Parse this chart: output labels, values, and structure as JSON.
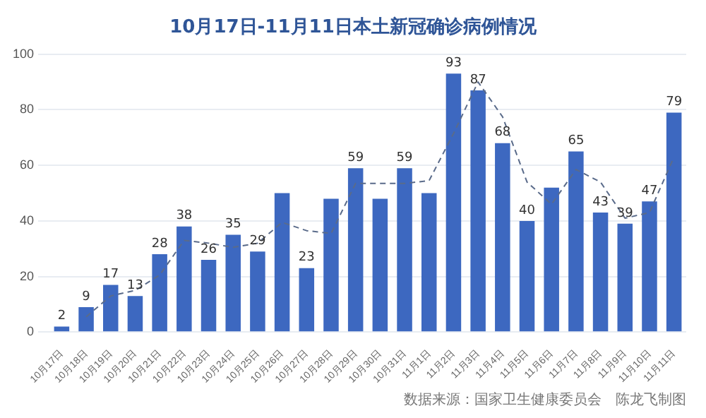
{
  "chart_data": {
    "type": "bar",
    "title": "10月17日-11月11日本土新冠确诊病例情况",
    "categories": [
      "10月17日",
      "10月18日",
      "10月19日",
      "10月20日",
      "10月21日",
      "10月22日",
      "10月23日",
      "10月24日",
      "10月25日",
      "10月26日",
      "10月27日",
      "10月28日",
      "10月29日",
      "10月30日",
      "10月31日",
      "11月1日",
      "11月2日",
      "11月3日",
      "11月4日",
      "11月5日",
      "11月6日",
      "11月7日",
      "11月8日",
      "11月9日",
      "11月10日",
      "11月11日"
    ],
    "series": [
      {
        "color": "#3d68c0",
        "values": [
          2,
          9,
          17,
          13,
          28,
          38,
          26,
          35,
          29,
          50,
          23,
          48,
          59,
          48,
          59,
          50,
          93,
          87,
          68,
          40,
          52,
          65,
          43,
          39,
          47,
          79
        ],
        "value_labels": [
          "2",
          "9",
          "17",
          "13",
          "28",
          "38",
          "26",
          "35",
          "29",
          null,
          "23",
          null,
          "59",
          null,
          "59",
          null,
          "93",
          "87",
          "68",
          "40",
          null,
          "65",
          "43",
          "39",
          "47",
          "79"
        ]
      },
      {
        "type": "line",
        "color": "#5a6b8a",
        "line_style": "dashed",
        "marker": "none",
        "values": [
          null,
          5.5,
          13,
          15,
          20.5,
          33,
          32,
          30.5,
          32,
          39.5,
          36.5,
          35.5,
          53.5,
          53.5,
          53.5,
          54.5,
          71.5,
          90,
          77.5,
          54,
          46,
          58.5,
          54,
          41,
          43,
          63
        ]
      }
    ],
    "ylim": [
      0,
      100
    ],
    "yticks": [
      0,
      20,
      40,
      60,
      80,
      100
    ],
    "grid": "y",
    "legend": false,
    "annotations": [
      "数据来源：国家卫生健康委员会　陈龙飞制图"
    ]
  }
}
